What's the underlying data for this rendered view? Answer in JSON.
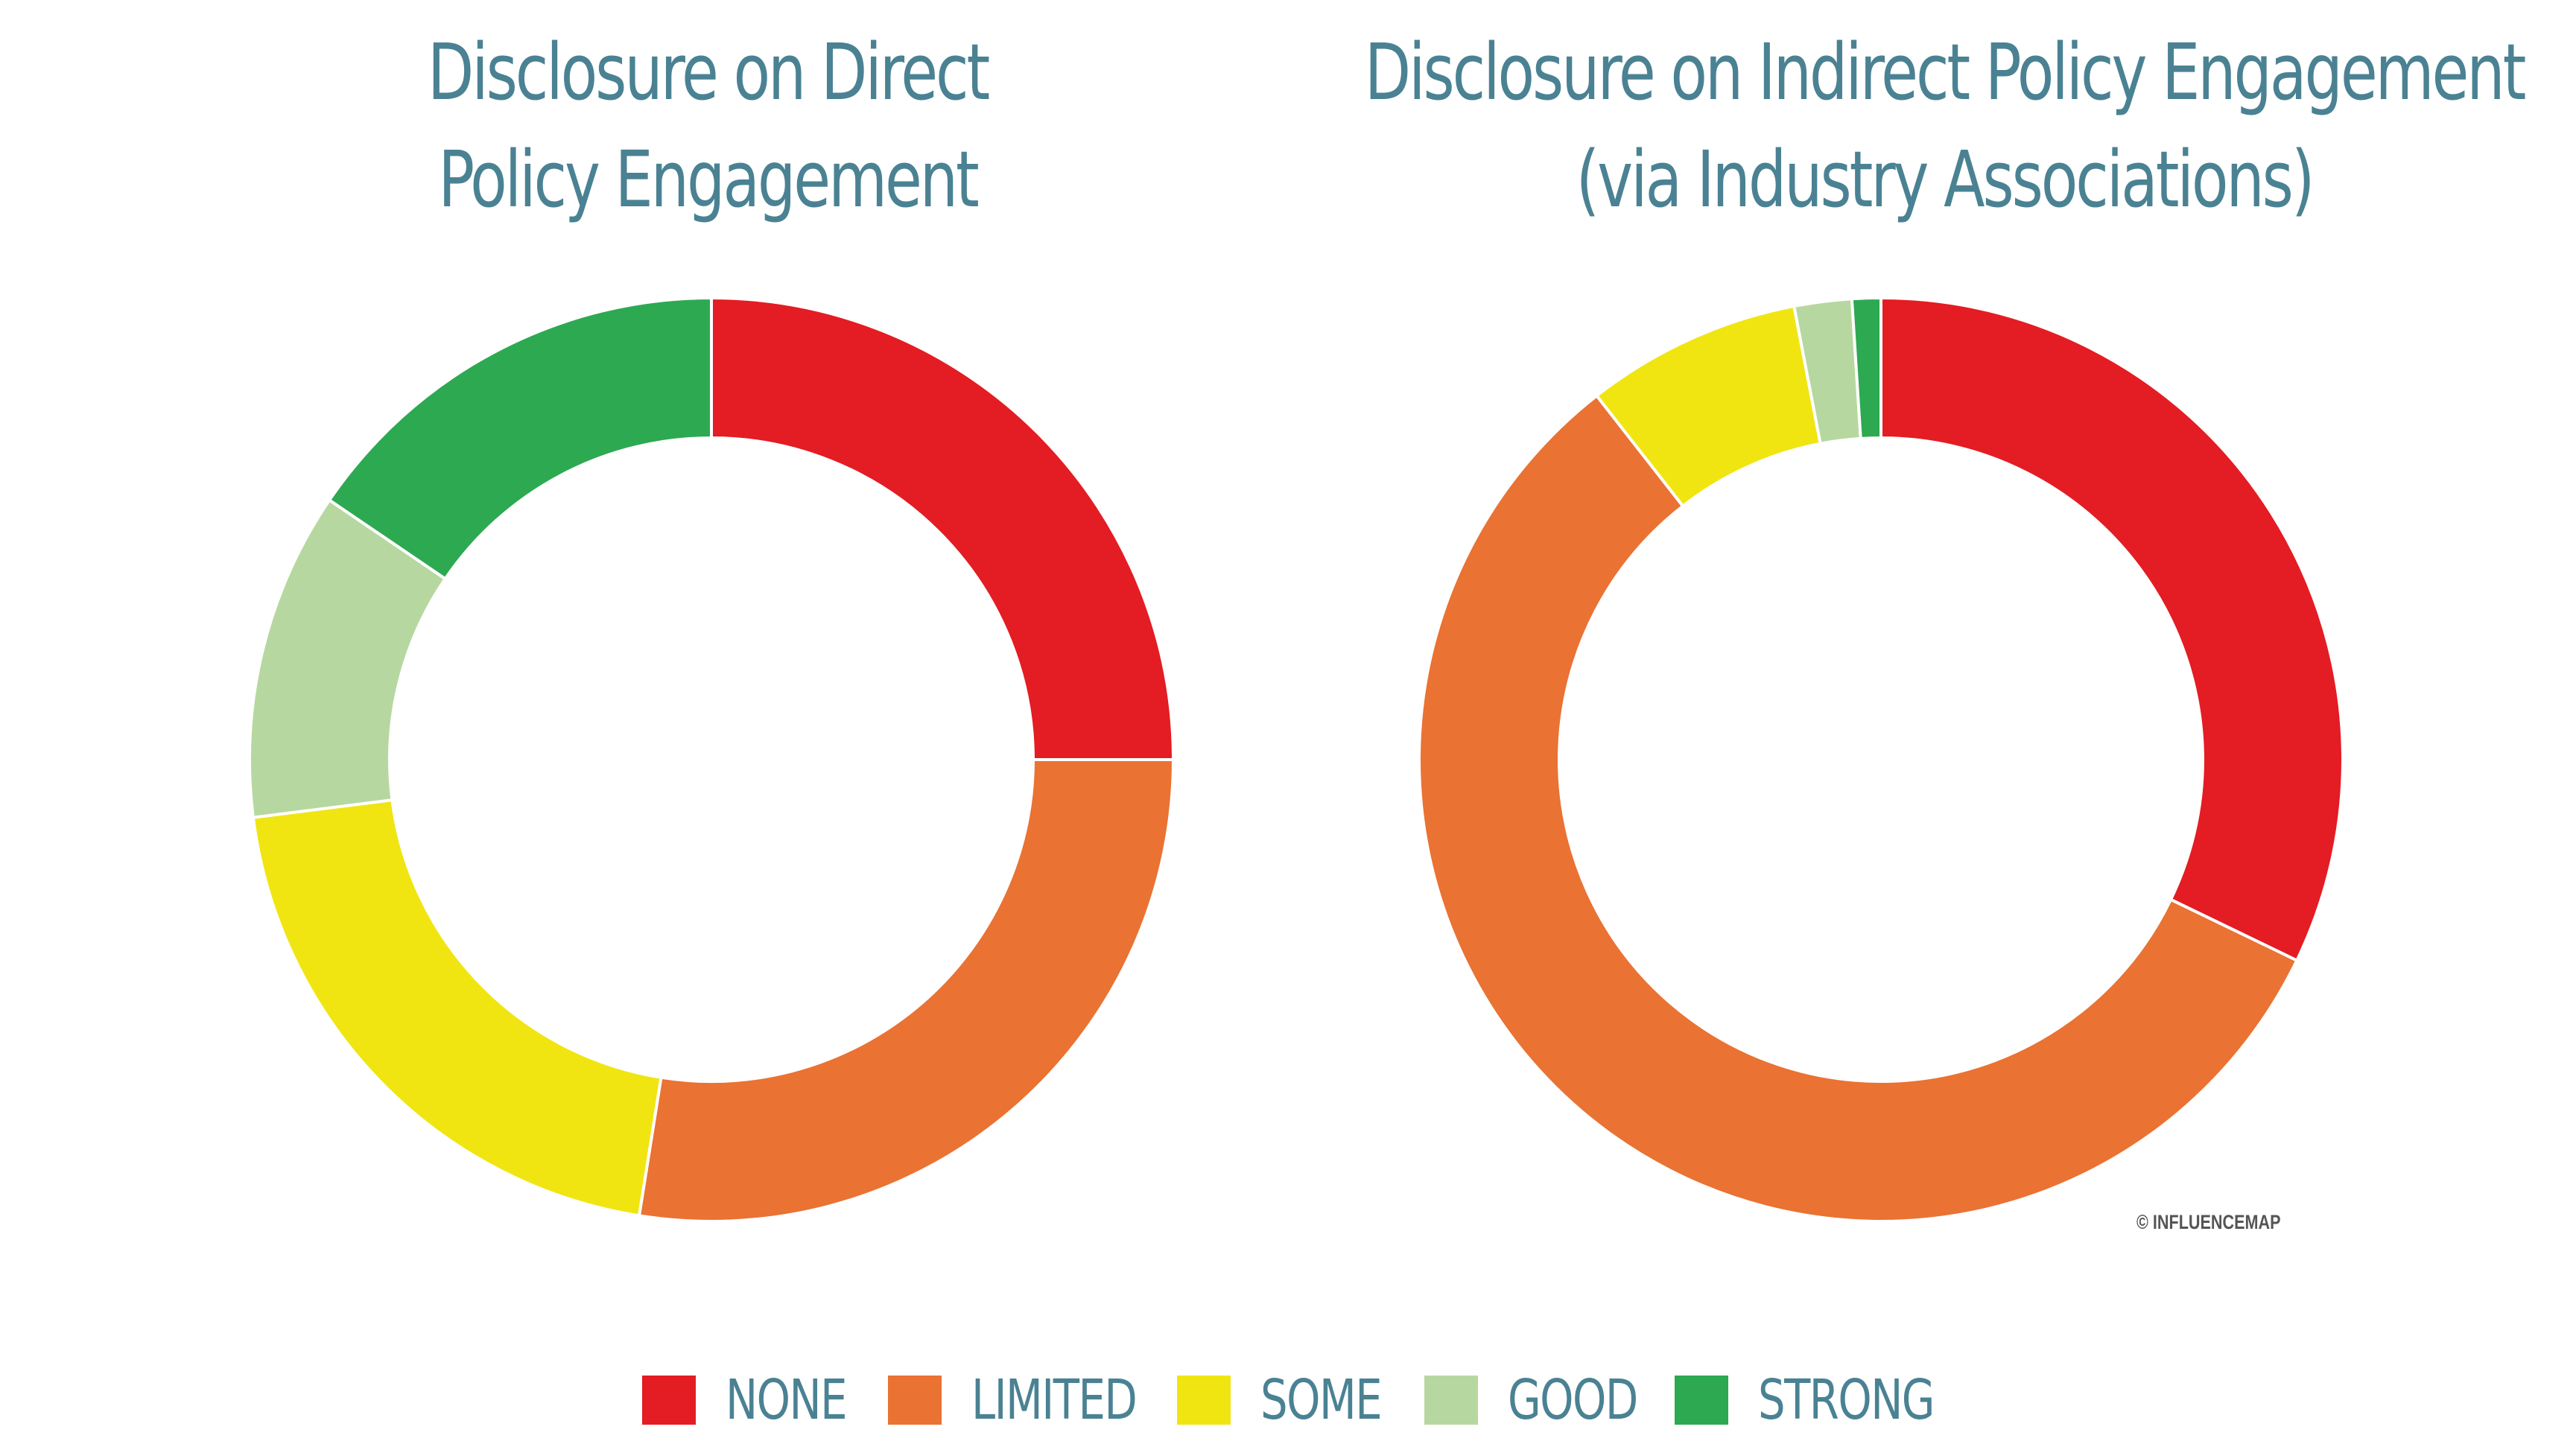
{
  "colors": {
    "none": "#e41c23",
    "limited": "#ea7233",
    "some": "#f0e511",
    "good": "#b6d8a0",
    "strong": "#2da952",
    "title": "#4a8293"
  },
  "legend": [
    "NONE",
    "LIMITED",
    "SOME",
    "GOOD",
    "STRONG"
  ],
  "credit": "© INFLUENCEMAP",
  "chart_data": [
    {
      "type": "pie",
      "variant": "donut",
      "title_lines": [
        "Disclosure on Direct",
        "Policy Engagement"
      ],
      "categories": [
        "NONE",
        "LIMITED",
        "SOME",
        "GOOD",
        "STRONG"
      ],
      "values": [
        25,
        27.5,
        20.5,
        11.5,
        15.5
      ]
    },
    {
      "type": "pie",
      "variant": "donut",
      "title_lines": [
        "Disclosure on Indirect Policy Engagement",
        "(via Industry Associations)"
      ],
      "categories": [
        "NONE",
        "LIMITED",
        "SOME",
        "GOOD",
        "STRONG"
      ],
      "values": [
        32,
        57,
        7.5,
        2,
        1
      ]
    }
  ]
}
